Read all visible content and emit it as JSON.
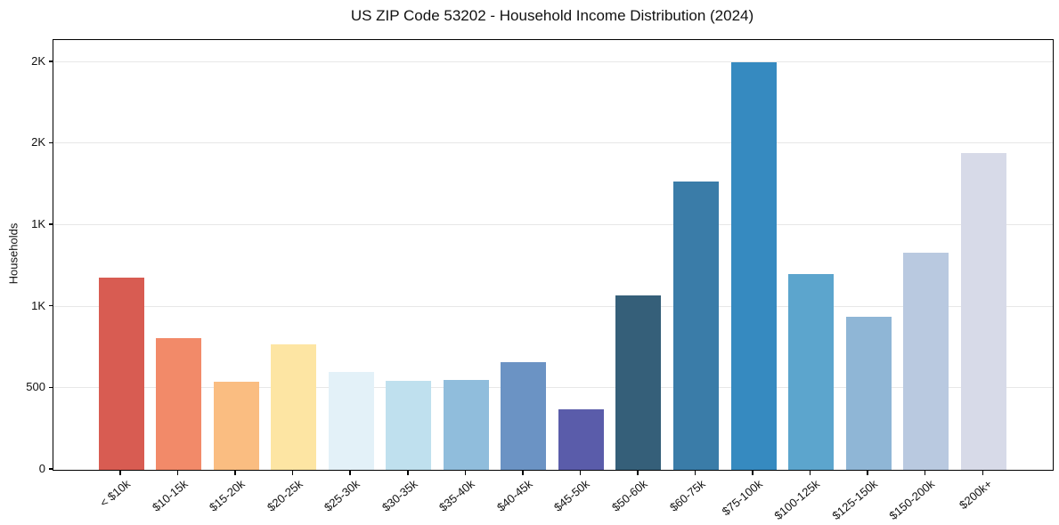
{
  "chart_data": {
    "type": "bar",
    "title": "US ZIP Code 53202 - Household Income Distribution (2024)",
    "xlabel": "",
    "ylabel": "Households",
    "categories": [
      "< $10k",
      "$10-15k",
      "$15-20k",
      "$20-25k",
      "$25-30k",
      "$30-35k",
      "$35-40k",
      "$40-45k",
      "$45-50k",
      "$50-60k",
      "$60-75k",
      "$75-100k",
      "$100-125k",
      "$125-150k",
      "$150-200k",
      "$200k+"
    ],
    "values": [
      1180,
      810,
      540,
      770,
      600,
      545,
      550,
      660,
      370,
      1070,
      1770,
      2500,
      1200,
      940,
      1330,
      1940
    ],
    "bar_colors": [
      "#d85c52",
      "#f28a69",
      "#fabd81",
      "#fde5a3",
      "#e3f1f8",
      "#bfe0ee",
      "#90bddc",
      "#6b93c4",
      "#5a5caa",
      "#355f79",
      "#3a7ca8",
      "#368ac0",
      "#5ca5cd",
      "#8fb6d6",
      "#b9c9e0",
      "#d7dae8"
    ],
    "ylim": [
      0,
      2635
    ],
    "yticks": {
      "values": [
        0,
        500,
        1000,
        1500,
        2000,
        2500
      ],
      "labels": [
        "0",
        "500",
        "1K",
        "1K",
        "2K",
        "2K"
      ]
    },
    "grid": "horizontal-major-only",
    "legend": "none",
    "colors": {
      "axis": "#000000",
      "gridline": "#e7e7e7",
      "text": "#111111",
      "background": "#ffffff"
    }
  }
}
